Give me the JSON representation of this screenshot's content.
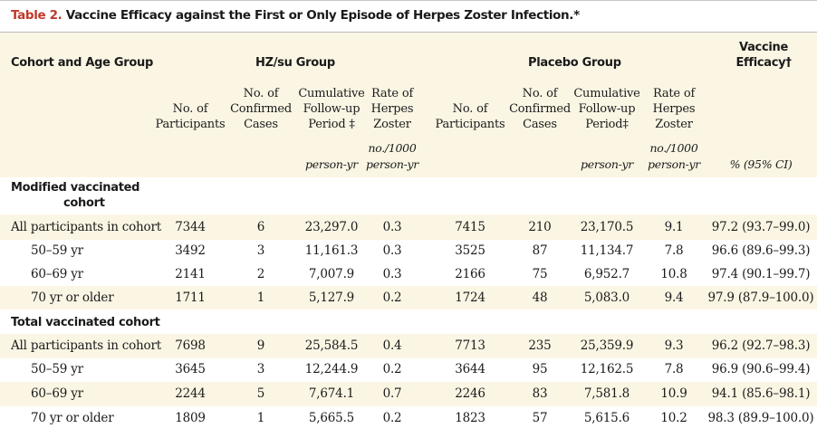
{
  "title": {
    "number": "Table 2.",
    "text": " Vaccine Efficacy against the First or Only Episode of Herpes Zoster Infection.*"
  },
  "headers": {
    "cohort": "Cohort and Age Group",
    "hz_group": "HZ/su Group",
    "placebo_group": "Placebo Group",
    "efficacy_line1": "Vaccine",
    "efficacy_line2": "Efficacy†"
  },
  "subheaders": {
    "participants": [
      "No. of",
      "Participants"
    ],
    "cases": [
      "No. of",
      "Confirmed",
      "Cases"
    ],
    "followup_hz": [
      "Cumulative",
      "Follow-up",
      "Period ‡"
    ],
    "followup_pl": [
      "Cumulative",
      "Follow-up",
      "Period‡"
    ],
    "rate": [
      "Rate of",
      "Herpes",
      "Zoster"
    ]
  },
  "units": {
    "rate": "no./1000",
    "person_yr": "person-yr",
    "efficacy": "% (95% CI)"
  },
  "sections": [
    {
      "label_line1": "Modified vaccinated",
      "label_line2": "cohort",
      "rows": [
        {
          "label": "All participants in cohort",
          "hz_n": "7344",
          "hz_cases": "6",
          "hz_fu": "23,297.0",
          "hz_rate": "0.3",
          "pl_n": "7415",
          "pl_cases": "210",
          "pl_fu": "23,170.5",
          "pl_rate": "9.1",
          "efficacy": "97.2 (93.7–99.0)"
        },
        {
          "label": "50–59 yr",
          "hz_n": "3492",
          "hz_cases": "3",
          "hz_fu": "11,161.3",
          "hz_rate": "0.3",
          "pl_n": "3525",
          "pl_cases": "87",
          "pl_fu": "11,134.7",
          "pl_rate": "7.8",
          "efficacy": "96.6 (89.6–99.3)"
        },
        {
          "label": "60–69 yr",
          "hz_n": "2141",
          "hz_cases": "2",
          "hz_fu": "7,007.9",
          "hz_rate": "0.3",
          "pl_n": "2166",
          "pl_cases": "75",
          "pl_fu": "6,952.7",
          "pl_rate": "10.8",
          "efficacy": "97.4 (90.1–99.7)"
        },
        {
          "label": "70 yr or older",
          "hz_n": "1711",
          "hz_cases": "1",
          "hz_fu": "5,127.9",
          "hz_rate": "0.2",
          "pl_n": "1724",
          "pl_cases": "48",
          "pl_fu": "5,083.0",
          "pl_rate": "9.4",
          "efficacy": "97.9 (87.9–100.0)"
        }
      ]
    },
    {
      "label_line1": "Total vaccinated cohort",
      "label_line2": "",
      "rows": [
        {
          "label": "All participants in cohort",
          "hz_n": "7698",
          "hz_cases": "9",
          "hz_fu": "25,584.5",
          "hz_rate": "0.4",
          "pl_n": "7713",
          "pl_cases": "235",
          "pl_fu": "25,359.9",
          "pl_rate": "9.3",
          "efficacy": "96.2 (92.7–98.3)"
        },
        {
          "label": "50–59 yr",
          "hz_n": "3645",
          "hz_cases": "3",
          "hz_fu": "12,244.9",
          "hz_rate": "0.2",
          "pl_n": "3644",
          "pl_cases": "95",
          "pl_fu": "12,162.5",
          "pl_rate": "7.8",
          "efficacy": "96.9 (90.6–99.4)"
        },
        {
          "label": "60–69 yr",
          "hz_n": "2244",
          "hz_cases": "5",
          "hz_fu": "7,674.1",
          "hz_rate": "0.7",
          "pl_n": "2246",
          "pl_cases": "83",
          "pl_fu": "7,581.8",
          "pl_rate": "10.9",
          "efficacy": "94.1 (85.6–98.1)"
        },
        {
          "label": "70 yr or older",
          "hz_n": "1809",
          "hz_cases": "1",
          "hz_fu": "5,665.5",
          "hz_rate": "0.2",
          "pl_n": "1823",
          "pl_cases": "57",
          "pl_fu": "5,615.6",
          "pl_rate": "10.2",
          "efficacy": "98.3 (89.9–100.0)"
        }
      ]
    }
  ]
}
